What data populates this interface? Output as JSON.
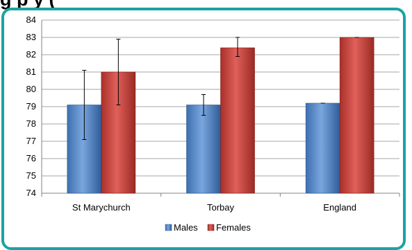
{
  "header": {
    "title_visible": "g                    p       y           ("
  },
  "chart_data": {
    "type": "bar",
    "categories": [
      "St Marychurch",
      "Torbay",
      "England"
    ],
    "series": [
      {
        "name": "Males",
        "values": [
          79.1,
          79.1,
          79.2
        ],
        "error_low": [
          77.1,
          78.5,
          79.2
        ],
        "error_high": [
          81.1,
          79.7,
          79.2
        ],
        "color": "#4a7ebf"
      },
      {
        "name": "Females",
        "values": [
          81.0,
          82.4,
          83.0
        ],
        "error_low": [
          79.1,
          81.9,
          83.0
        ],
        "error_high": [
          82.9,
          83.0,
          83.0
        ],
        "color": "#c0392b"
      }
    ],
    "title": "",
    "xlabel": "",
    "ylabel": "",
    "ylim": [
      74,
      84
    ],
    "yticks": [
      "74",
      "75",
      "76",
      "77",
      "78",
      "79",
      "80",
      "81",
      "82",
      "83",
      "84"
    ],
    "grid": true,
    "legend": "bottom-center"
  }
}
